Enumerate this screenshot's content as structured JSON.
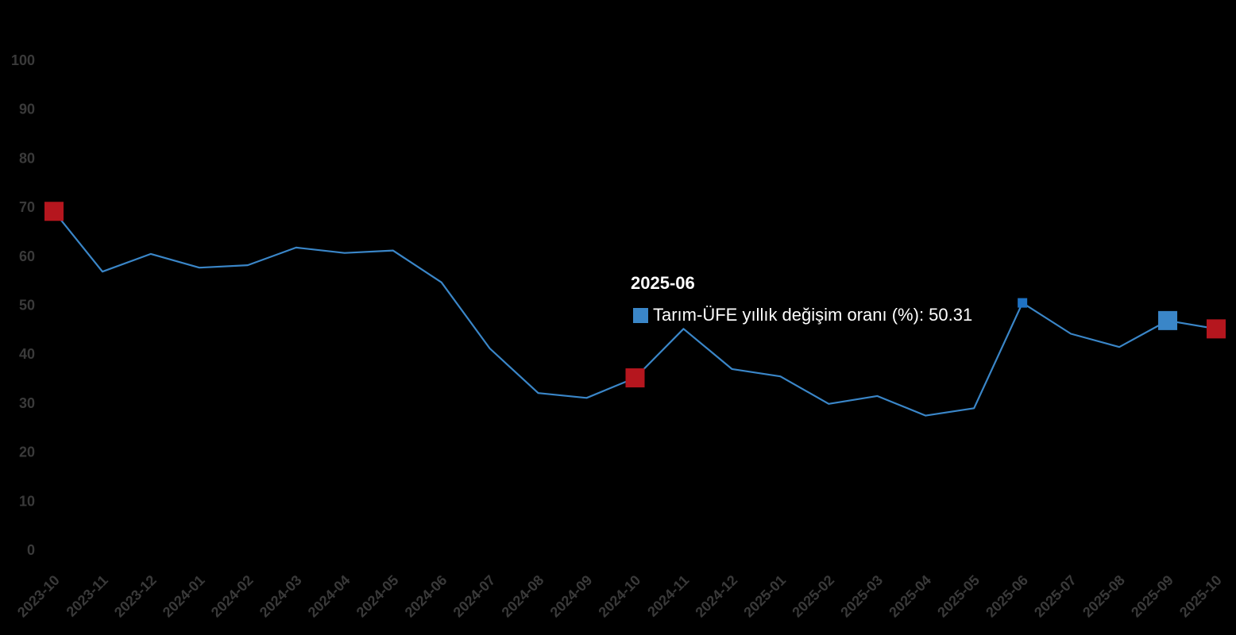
{
  "chart_data": {
    "type": "line",
    "title": "",
    "xlabel": "",
    "ylabel": "",
    "ylim": [
      0,
      100
    ],
    "y_ticks": [
      "0",
      "10",
      "20",
      "30",
      "40",
      "50",
      "60",
      "70",
      "80",
      "90",
      "100"
    ],
    "grid": false,
    "categories": [
      "2023-10",
      "2023-11",
      "2023-12",
      "2024-01",
      "2024-02",
      "2024-03",
      "2024-04",
      "2024-05",
      "2024-06",
      "2024-07",
      "2024-08",
      "2024-09",
      "2024-10",
      "2024-11",
      "2024-12",
      "2025-01",
      "2025-02",
      "2025-03",
      "2025-04",
      "2025-05",
      "2025-06",
      "2025-07",
      "2025-08",
      "2025-09",
      "2025-10"
    ],
    "series": [
      {
        "name": "Tarım-ÜFE yıllık değişim oranı (%)",
        "color": "#3a86c8",
        "values": [
          69.0,
          56.7,
          60.3,
          57.5,
          58.0,
          61.6,
          60.5,
          61.0,
          54.5,
          41.0,
          31.9,
          30.9,
          35.0,
          45.0,
          36.8,
          35.3,
          29.7,
          31.3,
          27.3,
          28.8,
          50.31,
          44.0,
          41.3,
          46.7,
          45.0
        ]
      }
    ],
    "highlighted_points": [
      {
        "category": "2023-10",
        "marker": "red-square"
      },
      {
        "category": "2024-10",
        "marker": "red-square"
      },
      {
        "category": "2025-06",
        "marker": "blue-small-square"
      },
      {
        "category": "2025-09",
        "marker": "blue-square"
      },
      {
        "category": "2025-10",
        "marker": "red-square"
      }
    ],
    "marker_colors": {
      "red": "#b5161e",
      "blue": "#3a86c8",
      "blue_active": "#1f72c4"
    },
    "tooltip": {
      "title": "2025-06",
      "label": "Tarım-ÜFE yıllık değişim oranı (%): 50.31",
      "swatch_color": "#3a86c8"
    }
  }
}
